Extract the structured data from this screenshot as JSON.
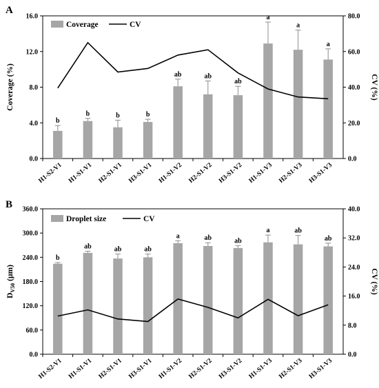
{
  "chart_data": [
    {
      "panel": "A",
      "type": "bar",
      "categories": [
        "H1-S2-V1",
        "H1-S1-V1",
        "H2-S1-V1",
        "H3-S1-V1",
        "H1-S1-V2",
        "H2-S1-V2",
        "H3-S1-V2",
        "H1-S1-V3",
        "H2-S1-V3",
        "H3-S1-V3"
      ],
      "ylabel": "Coverage (%)",
      "y2label": "CV (%)",
      "ylim": [
        0,
        16
      ],
      "y2lim": [
        0,
        80
      ],
      "yticks": [
        "0.0",
        "4.0",
        "8.0",
        "12.0",
        "16.0"
      ],
      "y2ticks": [
        "0.0",
        "20.0",
        "40.0",
        "60.0",
        "80.0"
      ],
      "legend": {
        "bar": "Coverage",
        "line": "CV",
        "position": "top-left"
      },
      "series": [
        {
          "name": "Coverage",
          "kind": "bar",
          "axis": "left",
          "color": "#a6a6a6",
          "values": [
            3.1,
            4.2,
            3.5,
            4.1,
            8.1,
            7.2,
            7.1,
            12.9,
            12.2,
            11.1
          ],
          "errors": [
            0.6,
            0.3,
            0.8,
            0.3,
            0.8,
            1.5,
            1.0,
            2.4,
            2.2,
            1.2
          ],
          "labels": [
            "b",
            "b",
            "b",
            "b",
            "ab",
            "ab",
            "ab",
            "a",
            "a",
            "a"
          ]
        },
        {
          "name": "CV",
          "kind": "line",
          "axis": "right",
          "color": "#000000",
          "values": [
            39.5,
            65,
            48.5,
            50.5,
            58,
            61,
            48,
            39,
            34.5,
            33.5
          ]
        }
      ]
    },
    {
      "panel": "B",
      "type": "bar",
      "categories": [
        "H1-S2-V1",
        "H1-S1-V1",
        "H2-S1-V1",
        "H3-S1-V1",
        "H1-S1-V2",
        "H2-S1-V2",
        "H3-S1-V2",
        "H1-S1-V3",
        "H2-S1-V3",
        "H3-S1-V3"
      ],
      "ylabel_main": "D",
      "ylabel_sub": "V50",
      "ylabel_unit": "(μm)",
      "y2label": "CV (%)",
      "ylim": [
        0,
        360
      ],
      "y2lim": [
        0,
        40
      ],
      "yticks": [
        "0.0",
        "60.0",
        "120.0",
        "180.0",
        "240.0",
        "300.0",
        "360.0"
      ],
      "y2ticks": [
        "0.0",
        "8.0",
        "16.0",
        "24.0",
        "32.0",
        "40.0"
      ],
      "legend": {
        "bar": "Droplet size",
        "line": "CV",
        "position": "top-left"
      },
      "series": [
        {
          "name": "Droplet size",
          "kind": "bar",
          "axis": "left",
          "color": "#a6a6a6",
          "values": [
            224,
            251,
            237,
            240,
            275,
            268,
            263,
            277,
            272,
            267
          ],
          "errors": [
            3,
            4,
            11,
            8,
            6,
            8,
            6,
            18,
            22,
            8
          ],
          "labels": [
            "b",
            "ab",
            "ab",
            "ab",
            "a",
            "ab",
            "ab",
            "a",
            "ab",
            "ab"
          ]
        },
        {
          "name": "CV",
          "kind": "line",
          "axis": "right",
          "color": "#000000",
          "values": [
            10.5,
            12.2,
            9.7,
            9.0,
            15.2,
            12.9,
            10.0,
            15.1,
            10.6,
            13.6
          ]
        }
      ]
    }
  ]
}
